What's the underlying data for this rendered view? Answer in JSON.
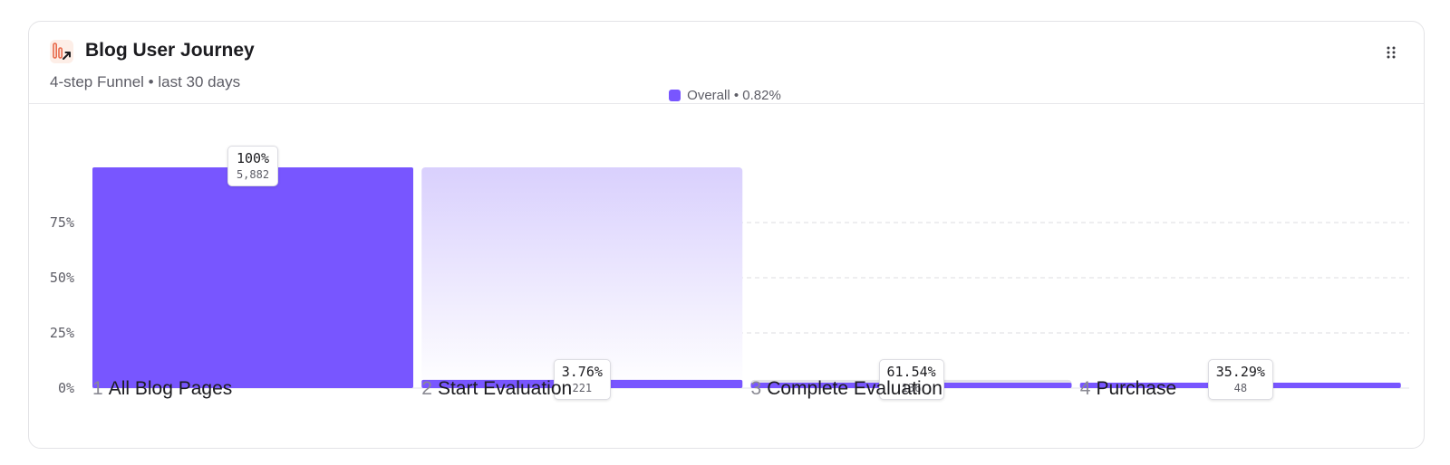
{
  "header": {
    "title": "Blog User Journey",
    "subtitle": "4-step Funnel • last 30 days",
    "icon": "funnel-report-icon",
    "menu_icon": "drag-handle-icon"
  },
  "colors": {
    "accent": "#7856ff",
    "accent_light": "#d9d0fd",
    "track": "#e3e3e8",
    "icon_bg": "#fdeee7",
    "icon_stroke": "#e86a4b"
  },
  "chart_data": {
    "type": "bar",
    "legend": {
      "label": "Overall • 0.82%",
      "position": "top-center"
    },
    "y_ticks": [
      "0%",
      "25%",
      "50%",
      "75%"
    ],
    "ylim": [
      0,
      100
    ],
    "grid": true,
    "categories": [
      "All Blog Pages",
      "Start Evaluation",
      "Complete Evaluation",
      "Purchase"
    ],
    "steps": [
      {
        "number": "1",
        "label": "All Blog Pages",
        "overall_pct": 100,
        "prev_pct": 100,
        "conversion_label": "100%",
        "count": "5,882"
      },
      {
        "number": "2",
        "label": "Start Evaluation",
        "overall_pct": 3.76,
        "prev_pct": 100,
        "conversion_label": "3.76%",
        "count": "221"
      },
      {
        "number": "3",
        "label": "Complete Evaluation",
        "overall_pct": 2.31,
        "prev_pct": 3.76,
        "conversion_label": "61.54%",
        "count": "136"
      },
      {
        "number": "4",
        "label": "Purchase",
        "overall_pct": 0.82,
        "prev_pct": 2.31,
        "conversion_label": "35.29%",
        "count": "48"
      }
    ]
  }
}
